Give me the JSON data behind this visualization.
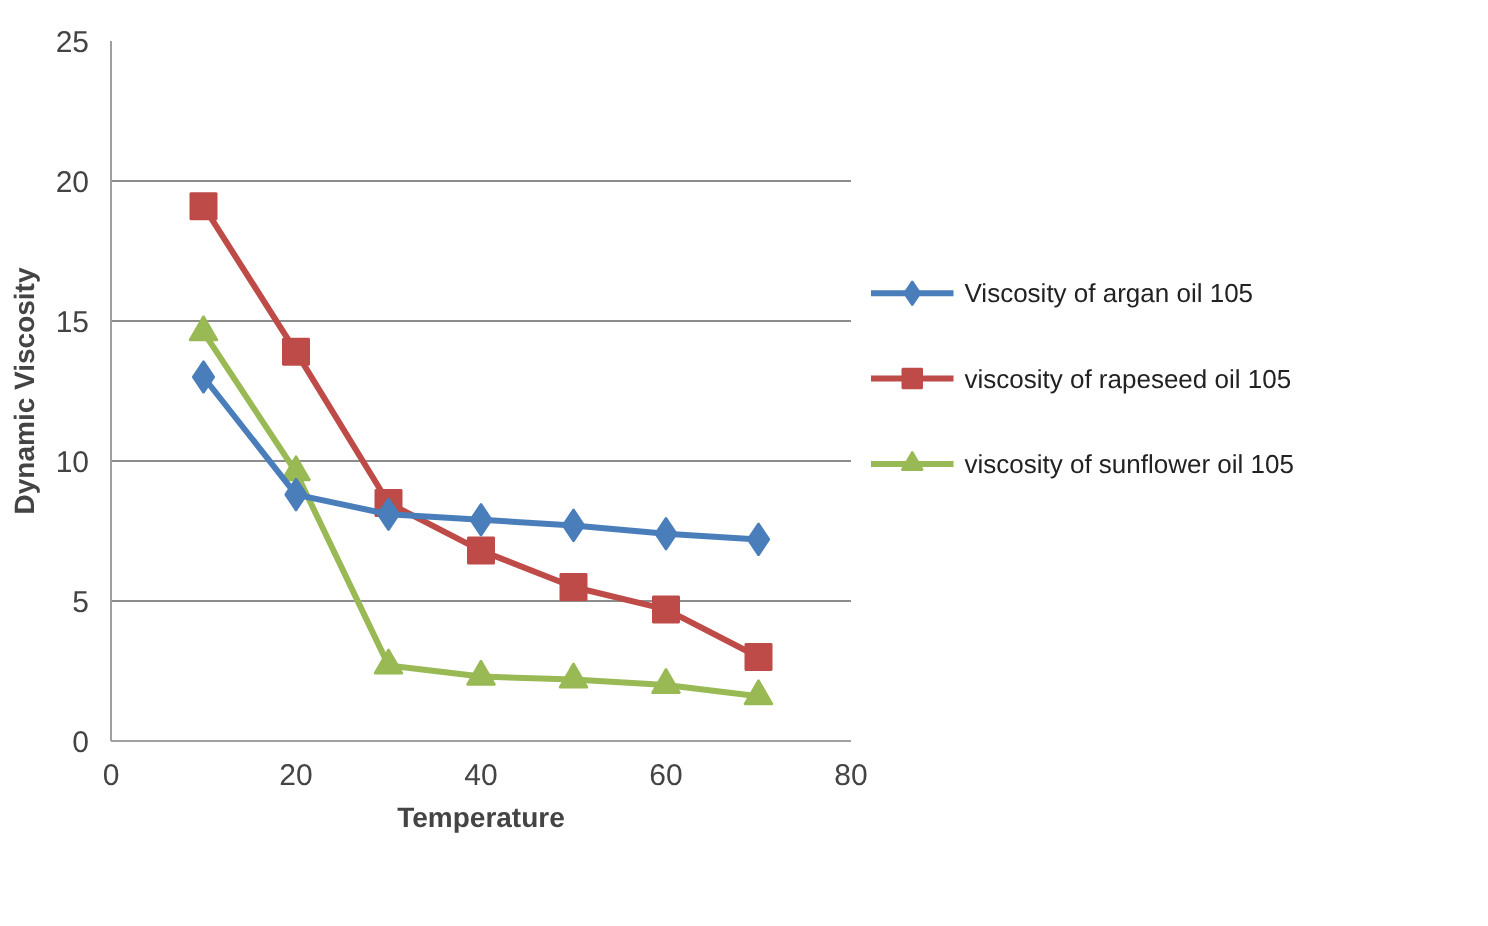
{
  "chart_data": {
    "type": "line",
    "xlabel": "Temperature",
    "ylabel": "Dynamic Viscosity",
    "x": [
      10,
      20,
      30,
      40,
      50,
      60,
      70
    ],
    "series": [
      {
        "name": "Viscosity of argan oil 105",
        "color": "#4a7ebb",
        "marker": "diamond",
        "values": [
          13.0,
          8.8,
          8.1,
          7.9,
          7.7,
          7.4,
          7.2
        ]
      },
      {
        "name": "viscosity of rapeseed oil 105",
        "color": "#be4b48",
        "marker": "square",
        "values": [
          19.1,
          13.9,
          8.5,
          6.8,
          5.5,
          4.7,
          3.0
        ]
      },
      {
        "name": "viscosity of sunflower oil 105",
        "color": "#98b954",
        "marker": "triangle",
        "values": [
          14.6,
          9.6,
          2.7,
          2.3,
          2.2,
          2.0,
          1.6
        ]
      }
    ],
    "xlim": [
      0,
      80
    ],
    "xticks": [
      0,
      20,
      40,
      60,
      80
    ],
    "ylim": [
      0,
      25
    ],
    "yticks": [
      0,
      5,
      10,
      15,
      20,
      25
    ],
    "grid": "y",
    "legend": "right",
    "line_style": "solid"
  }
}
